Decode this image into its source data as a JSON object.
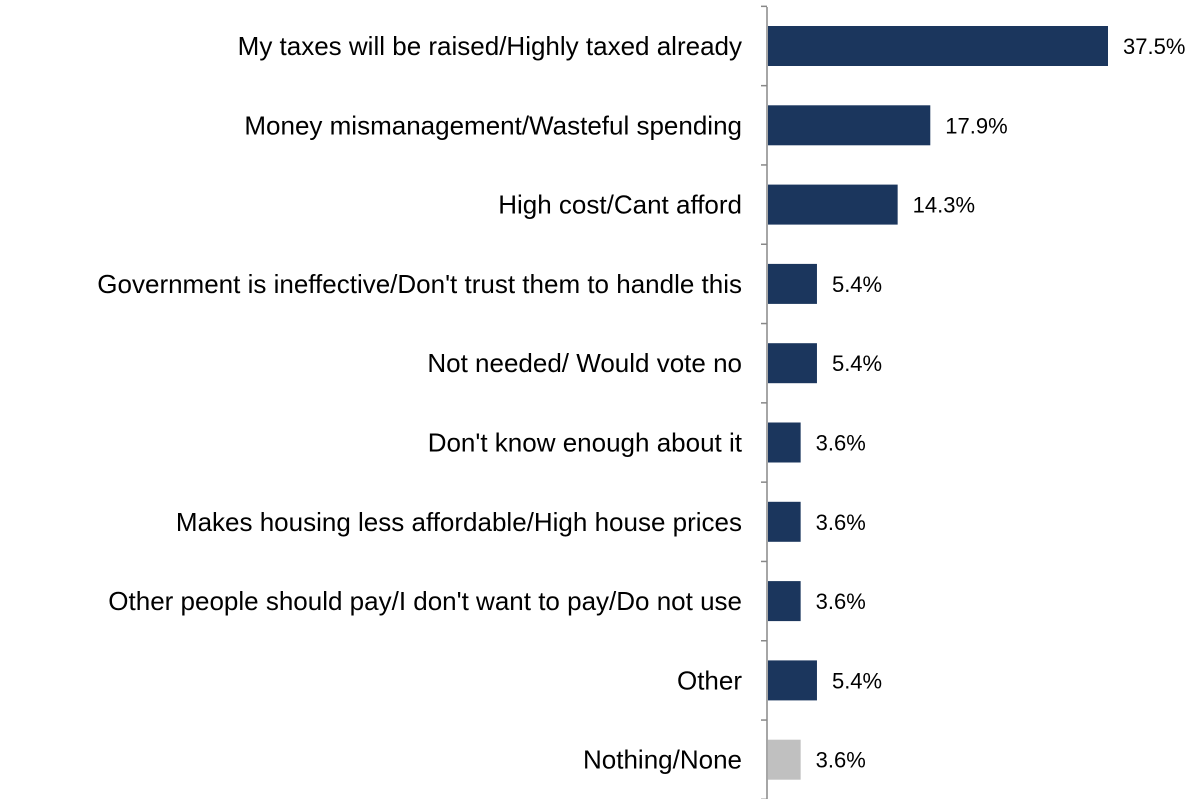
{
  "chart_data": {
    "type": "bar",
    "orientation": "horizontal",
    "title": "",
    "xlabel": "",
    "ylabel": "",
    "grid": false,
    "xlim": [
      0,
      40
    ],
    "categories": [
      "My taxes will be raised/Highly taxed already",
      "Money mismanagement/Wasteful spending",
      "High cost/Cant afford",
      "Government is ineffective/Don't trust them to handle this",
      "Not needed/ Would vote no",
      "Don't know enough about it",
      "Makes housing less affordable/High house prices",
      "Other people should pay/I don't want to pay/Do not use",
      "Other",
      "Nothing/None"
    ],
    "values": [
      37.5,
      17.9,
      14.3,
      5.4,
      5.4,
      3.6,
      3.6,
      3.6,
      5.4,
      3.6
    ],
    "value_labels": [
      "37.5%",
      "17.9%",
      "14.3%",
      "5.4%",
      "5.4%",
      "3.6%",
      "3.6%",
      "3.6%",
      "5.4%",
      "3.6%"
    ],
    "bar_colors": [
      "#1b365d",
      "#1b365d",
      "#1b365d",
      "#1b365d",
      "#1b365d",
      "#1b365d",
      "#1b365d",
      "#1b365d",
      "#1b365d",
      "#c0c0c0"
    ],
    "axis_color": "#888888"
  }
}
